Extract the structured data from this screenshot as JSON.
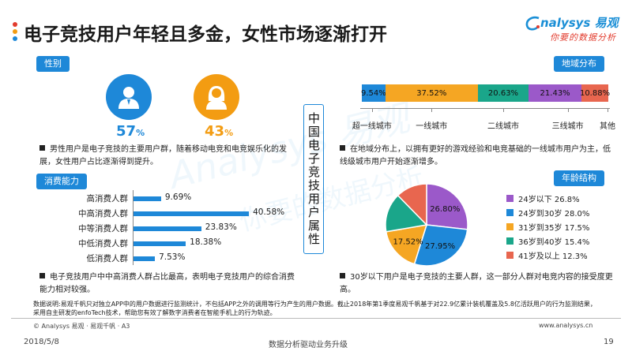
{
  "header": {
    "title": "电子竞技用户年轻且多金，女性市场逐渐打开",
    "logo_main": "nalysys 易观",
    "logo_sub": "你要的数据分析",
    "dot_colors": [
      "#e23c2e",
      "#f39c12",
      "#1e88d8"
    ]
  },
  "gender": {
    "label": "性别",
    "male": {
      "value": "57",
      "unit": "%",
      "color": "#1e88d8",
      "icon": "male-user-icon"
    },
    "female": {
      "value": "43",
      "unit": "%",
      "color": "#f39c12",
      "icon": "female-user-icon"
    },
    "note": "男性用户是电子竞技的主要用户群，随着移动电竞和电竞娱乐化的发展，女性用户占比逐渐得到提升。"
  },
  "consumption": {
    "label": "消费能力",
    "note": "电子竞技用户中中高消费人群占比最高，表明电子竞技用户的综合消费能力相对较强。"
  },
  "center_label": "中国电子竞技用户属性",
  "region": {
    "label": "地域分布",
    "note": "在地域分布上，以拥有更好的游戏经验和电竞基础的一线城市用户为主，低线级城市用户开始逐渐增多。"
  },
  "age": {
    "label": "年龄结构",
    "note": "30岁以下用户是电子竞技的主要人群，这一部分人群对电竞内容的接受度更高。"
  },
  "chart_data": [
    {
      "type": "bar",
      "orientation": "horizontal",
      "categories": [
        "高消费人群",
        "中高消费人群",
        "中等消费人群",
        "中低消费人群",
        "低消费人群"
      ],
      "values": [
        9.69,
        40.58,
        23.83,
        18.38,
        7.53
      ],
      "value_labels": [
        "9.69%",
        "40.58%",
        "23.83%",
        "18.38%",
        "7.53%"
      ],
      "xlim": [
        0,
        45
      ],
      "color": "#1e88d8"
    },
    {
      "type": "bar",
      "orientation": "stacked-horizontal",
      "categories": [
        "超一线城市",
        "一线城市",
        "二线城市",
        "三线城市",
        "其他"
      ],
      "values": [
        9.54,
        37.52,
        20.63,
        21.43,
        10.88
      ],
      "value_labels": [
        "9.54%",
        "37.52%",
        "20.63%",
        "21.43%",
        "10.88%"
      ],
      "colors": [
        "#1e88d8",
        "#f5a623",
        "#1aa68a",
        "#9b59c9",
        "#e8664f"
      ]
    },
    {
      "type": "pie",
      "categories": [
        "24岁以下",
        "24岁到30岁",
        "31岁到35岁",
        "36岁到40岁",
        "41岁及以上"
      ],
      "values": [
        26.8,
        28.0,
        17.5,
        15.4,
        12.3
      ],
      "legend": [
        "24岁以下 26.8%",
        "24岁到30岁 28.0%",
        "31岁到35岁 17.5%",
        "36岁到40岁 15.4%",
        "41岁及以上 12.3%"
      ],
      "slice_labels": [
        "26.80%",
        "27.95%",
        "17.52%",
        "",
        ""
      ],
      "colors": [
        "#9b59c9",
        "#1e88d8",
        "#f5a623",
        "#1aa68a",
        "#e8664f"
      ],
      "legend_position": "right"
    }
  ],
  "footer": {
    "footnote": "数据说明:易观千帆只对独立APP中的用户数据进行监测统计，不包括APP之外的调用等行为产生的用户数据。截止2018年第1季度易观千帆基于对22.9亿累计装机覆盖及5.8亿活跃用户的行为监测结果，采用自主研发的enfoTech技术，帮助您有效了解数字消费者在智能手机上的行为轨迹。",
    "copyright": "© Analysys 易观 · 易观千帆 · A3",
    "website": "www.analysys.cn",
    "date": "2018/5/8",
    "slogan": "数据分析驱动业务升级",
    "page": "19"
  }
}
